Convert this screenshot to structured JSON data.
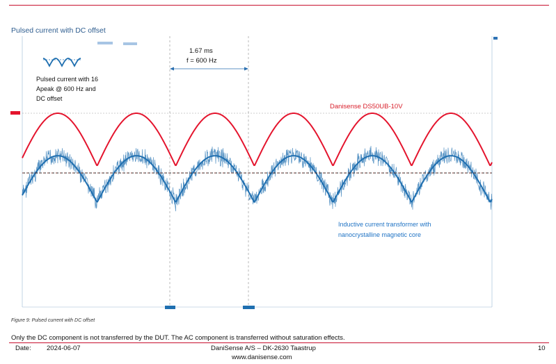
{
  "section_title": "Pulsed current with DC offset",
  "figure": {
    "inset_text": [
      "Pulsed current with 16",
      "Apeak @ 600 Hz and",
      "DC offset"
    ],
    "period_label": "1.67 ms",
    "frequency_label": "f = 600 Hz",
    "red_trace_label": "Danisense DS50UB-10V",
    "blue_trace_label_lines": [
      "Inductive current transformer with",
      "nanocrystalline magnetic core"
    ],
    "colors": {
      "red": "#e4142d",
      "blue": "#1f6fb0",
      "annotation_red": "#d81e2a",
      "annotation_blue": "#1f73c4"
    }
  },
  "chart_data": {
    "type": "line",
    "title": "Pulsed current with DC offset",
    "xlabel": "",
    "ylabel": "",
    "frequency_hz": 600,
    "period_ms": 1.67,
    "series": [
      {
        "name": "Danisense DS50UB-10V",
        "shape": "rectified sine (pulsed current with DC offset)",
        "peak_amplitude_A": 16,
        "cycles_shown": 6
      },
      {
        "name": "Inductive current transformer with nanocrystalline magnetic core",
        "shape": "AC component only (DC removed), noisy",
        "cycles_shown": 6
      }
    ]
  },
  "caption": "Figure 9: Pulsed current with DC offset",
  "body_text": "Only the DC component is not transferred by the DUT. The AC component is transferred without saturation effects.",
  "footer": {
    "date_label": "Date:",
    "date": "2024-06-07",
    "company": "DaniSense A/S – DK-2630 Taastrup",
    "website": "www.danisense.com",
    "page": "10"
  }
}
